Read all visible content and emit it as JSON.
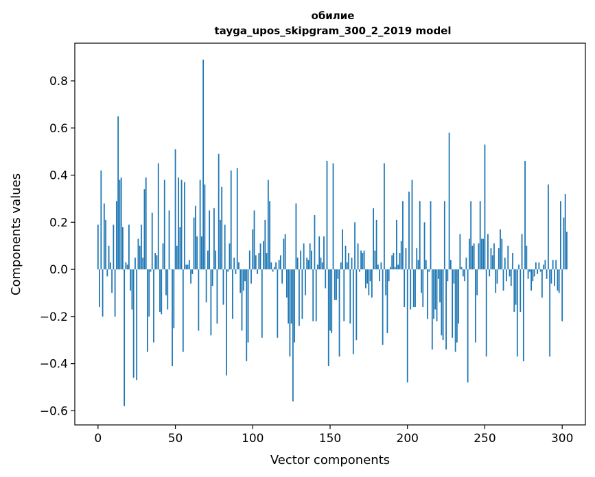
{
  "chart_data": {
    "type": "bar",
    "title": "обилие",
    "subtitle": "tayga_upos_skipgram_300_2_2019 model",
    "xlabel": "Vector components",
    "ylabel": "Components values",
    "xlim": [
      -15,
      315
    ],
    "ylim": [
      -0.66,
      0.96
    ],
    "xticks": [
      0,
      50,
      100,
      150,
      200,
      250,
      300
    ],
    "xtick_labels": [
      "0",
      "50",
      "100",
      "150",
      "200",
      "250",
      "300"
    ],
    "yticks": [
      -0.6,
      -0.4,
      -0.2,
      0.0,
      0.2,
      0.4,
      0.6,
      0.8
    ],
    "ytick_labels": [
      "−0.6",
      "−0.4",
      "−0.2",
      "0.0",
      "0.2",
      "0.4",
      "0.6",
      "0.8"
    ],
    "grid": false,
    "bar_color": "#1f77b4",
    "values": [
      0.19,
      -0.16,
      0.42,
      -0.2,
      0.28,
      0.21,
      -0.03,
      0.1,
      0.03,
      -0.1,
      0.19,
      -0.2,
      0.29,
      0.65,
      0.38,
      0.39,
      0.18,
      -0.58,
      0.03,
      0.02,
      0.19,
      -0.09,
      -0.17,
      -0.46,
      0.05,
      -0.47,
      0.13,
      0.1,
      0.19,
      0.05,
      0.34,
      0.39,
      -0.35,
      -0.2,
      -0.01,
      0.24,
      -0.31,
      0.07,
      0.06,
      0.45,
      -0.18,
      -0.19,
      0.11,
      0.38,
      -0.11,
      -0.17,
      0.25,
      0.0,
      -0.41,
      -0.25,
      0.51,
      0.1,
      0.39,
      0.18,
      0.38,
      -0.35,
      0.37,
      0.02,
      0.02,
      0.04,
      -0.06,
      -0.02,
      0.22,
      0.27,
      0.14,
      -0.26,
      0.38,
      0.14,
      0.89,
      0.36,
      -0.14,
      0.08,
      0.25,
      -0.28,
      -0.07,
      0.26,
      0.08,
      -0.23,
      0.49,
      0.21,
      0.35,
      -0.15,
      0.19,
      -0.45,
      -0.01,
      0.11,
      0.42,
      -0.21,
      0.05,
      -0.02,
      0.43,
      0.03,
      -0.1,
      -0.26,
      -0.09,
      -0.05,
      -0.39,
      -0.31,
      0.08,
      -0.06,
      0.17,
      0.25,
      0.06,
      -0.02,
      0.07,
      0.11,
      -0.29,
      0.12,
      0.21,
      0.07,
      0.38,
      0.29,
      0.03,
      -0.01,
      0.01,
      0.03,
      -0.29,
      0.04,
      0.06,
      -0.06,
      0.13,
      0.15,
      -0.12,
      -0.23,
      -0.37,
      -0.23,
      -0.56,
      -0.31,
      0.28,
      0.05,
      -0.24,
      0.08,
      -0.21,
      0.11,
      -0.11,
      0.05,
      0.04,
      0.11,
      0.08,
      -0.22,
      0.23,
      -0.22,
      0.02,
      0.14,
      0.05,
      0.03,
      0.14,
      -0.08,
      0.46,
      -0.41,
      -0.26,
      -0.27,
      0.45,
      -0.13,
      -0.13,
      -0.04,
      -0.37,
      0.03,
      0.17,
      -0.22,
      0.1,
      0.03,
      0.07,
      -0.23,
      0.05,
      -0.36,
      0.2,
      -0.3,
      0.11,
      -0.01,
      0.08,
      0.07,
      0.08,
      -0.08,
      -0.06,
      -0.11,
      -0.05,
      -0.12,
      0.26,
      0.08,
      0.21,
      0.02,
      -0.05,
      0.03,
      -0.32,
      0.45,
      -0.11,
      -0.27,
      -0.05,
      0.01,
      0.06,
      0.07,
      0.01,
      0.21,
      0.02,
      0.07,
      0.12,
      0.29,
      -0.16,
      0.09,
      -0.48,
      0.33,
      -0.17,
      0.38,
      -0.16,
      -0.16,
      0.09,
      0.04,
      0.29,
      -0.1,
      -0.16,
      0.2,
      0.04,
      -0.21,
      -0.01,
      0.29,
      -0.34,
      -0.21,
      -0.17,
      -0.22,
      -0.04,
      -0.14,
      -0.28,
      -0.3,
      0.29,
      -0.34,
      -0.05,
      0.58,
      0.04,
      -0.29,
      -0.06,
      -0.35,
      -0.31,
      -0.23,
      0.15,
      0.01,
      -0.03,
      -0.05,
      0.05,
      -0.48,
      0.13,
      0.29,
      0.1,
      0.11,
      -0.31,
      -0.11,
      0.11,
      0.29,
      0.13,
      0.13,
      0.53,
      -0.37,
      0.15,
      -0.03,
      0.09,
      0.06,
      0.11,
      -0.1,
      -0.06,
      0.09,
      0.17,
      0.13,
      -0.09,
      0.05,
      -0.05,
      0.1,
      -0.03,
      -0.07,
      0.07,
      -0.18,
      -0.15,
      -0.37,
      0.02,
      -0.18,
      0.15,
      -0.39,
      0.46,
      0.1,
      -0.04,
      -0.01,
      -0.09,
      -0.05,
      -0.03,
      0.03,
      -0.02,
      0.03,
      -0.01,
      -0.12,
      0.02,
      0.04,
      -0.04,
      0.36,
      -0.37,
      -0.06,
      0.04,
      -0.07,
      0.04,
      -0.09,
      -0.1,
      0.29,
      -0.22,
      0.22,
      0.32,
      0.16
    ]
  }
}
